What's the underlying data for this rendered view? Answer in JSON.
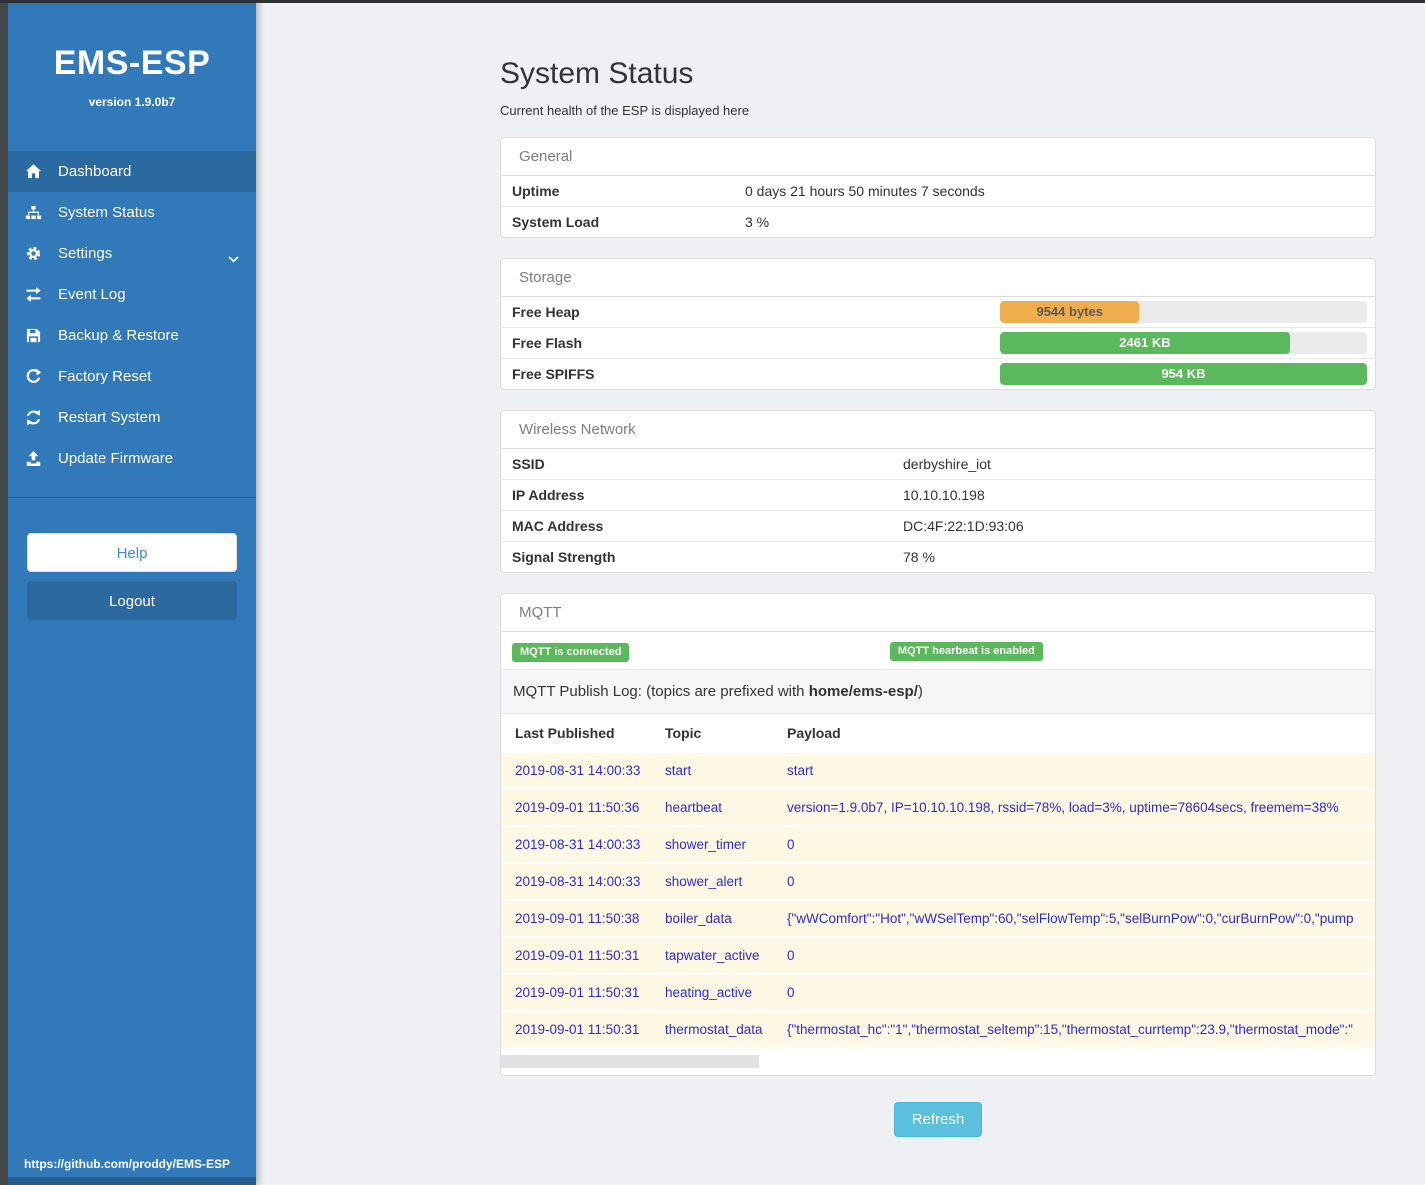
{
  "colors": {
    "sidebar_blue": "#3179b8",
    "sidebar_active_blue": "#2b6aa0",
    "dark_strip": "#43474b",
    "success_green": "#5cb85c",
    "warning_orange": "#f0ad4e",
    "info_blue": "#5bc0de",
    "log_text_blue": "#2d2dd2",
    "sidebar_bottom_strip": "#255d8d"
  },
  "sidebar": {
    "brand": "EMS-ESP",
    "version": "version 1.9.0b7",
    "items": [
      {
        "label": "Dashboard",
        "icon": "home-icon",
        "active": true
      },
      {
        "label": "System Status",
        "icon": "sitemap-icon"
      },
      {
        "label": "Settings",
        "icon": "gear-icon",
        "chevron": true
      },
      {
        "label": "Event Log",
        "icon": "exchange-icon"
      },
      {
        "label": "Backup & Restore",
        "icon": "save-icon"
      },
      {
        "label": "Factory Reset",
        "icon": "rotate-right-icon"
      },
      {
        "label": "Restart System",
        "icon": "refresh-icon"
      },
      {
        "label": "Update Firmware",
        "icon": "upload-icon"
      }
    ],
    "help_label": "Help",
    "logout_label": "Logout",
    "footer_link": "https://github.com/proddy/EMS-ESP"
  },
  "page": {
    "title": "System Status",
    "subtitle": "Current health of the ESP is displayed here",
    "refresh_label": "Refresh"
  },
  "general": {
    "title": "General",
    "rows": [
      {
        "label": "Uptime",
        "value": "0 days 21 hours 50 minutes 7 seconds"
      },
      {
        "label": "System Load",
        "value": "3 %"
      }
    ]
  },
  "storage": {
    "title": "Storage",
    "rows": [
      {
        "label": "Free Heap",
        "value": "9544 bytes",
        "width": "38%",
        "color": "#f0ad4e"
      },
      {
        "label": "Free Flash",
        "value": "2461 KB",
        "width": "79%",
        "color": "#5cb85c"
      },
      {
        "label": "Free SPIFFS",
        "value": "954 KB",
        "width": "100%",
        "color": "#5cb85c"
      }
    ]
  },
  "wireless": {
    "title": "Wireless Network",
    "rows": [
      {
        "label": "SSID",
        "value": "derbyshire_iot"
      },
      {
        "label": "IP Address",
        "value": "10.10.10.198"
      },
      {
        "label": "MAC Address",
        "value": "DC:4F:22:1D:93:06"
      },
      {
        "label": "Signal Strength",
        "value": "78 %"
      }
    ]
  },
  "mqtt": {
    "title": "MQTT",
    "badges": [
      "MQTT is connected",
      "MQTT hearbeat is enabled"
    ],
    "publish_log_prefix": "MQTT Publish Log: (topics are prefixed with ",
    "publish_log_topic": "home/ems-esp/",
    "publish_log_suffix": ")",
    "columns": [
      "Last Published",
      "Topic",
      "Payload"
    ],
    "rows": [
      {
        "published": "2019-08-31 14:00:33",
        "topic": "start",
        "payload": "start"
      },
      {
        "published": "2019-09-01 11:50:36",
        "topic": "heartbeat",
        "payload": "version=1.9.0b7, IP=10.10.10.198, rssid=78%, load=3%, uptime=78604secs, freemem=38%"
      },
      {
        "published": "2019-08-31 14:00:33",
        "topic": "shower_timer",
        "payload": "0"
      },
      {
        "published": "2019-08-31 14:00:33",
        "topic": "shower_alert",
        "payload": "0"
      },
      {
        "published": "2019-09-01 11:50:38",
        "topic": "boiler_data",
        "payload": "{\"wWComfort\":\"Hot\",\"wWSelTemp\":60,\"selFlowTemp\":5,\"selBurnPow\":0,\"curBurnPow\":0,\"pump"
      },
      {
        "published": "2019-09-01 11:50:31",
        "topic": "tapwater_active",
        "payload": "0"
      },
      {
        "published": "2019-09-01 11:50:31",
        "topic": "heating_active",
        "payload": "0"
      },
      {
        "published": "2019-09-01 11:50:31",
        "topic": "thermostat_data",
        "payload": "{\"thermostat_hc\":\"1\",\"thermostat_seltemp\":15,\"thermostat_currtemp\":23.9,\"thermostat_mode\":\""
      }
    ]
  }
}
